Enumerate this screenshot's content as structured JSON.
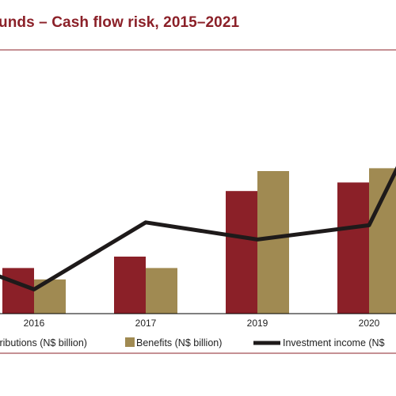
{
  "title": "unds – Cash flow risk, 2015–2021",
  "colors": {
    "contributions": "#8B2028",
    "benefits": "#A08A52",
    "investment": "#1E1A1A",
    "rule": "#8B2028"
  },
  "chart_data": {
    "type": "bar",
    "categories": [
      "2016",
      "2017",
      "2019",
      "2020"
    ],
    "series": [
      {
        "name": "tributions (N$ billion)",
        "type": "bar",
        "values": [
          1.6,
          2.0,
          4.3,
          4.6
        ]
      },
      {
        "name": "Benefits (N$ billion)",
        "type": "bar",
        "values": [
          1.2,
          1.6,
          5.0,
          5.1
        ]
      },
      {
        "name": "Investment income (N$",
        "type": "line",
        "values": [
          0.85,
          3.2,
          2.6,
          3.1
        ]
      }
    ],
    "ylim": [
      0,
      8
    ],
    "grid": false,
    "legend": "bottom"
  }
}
